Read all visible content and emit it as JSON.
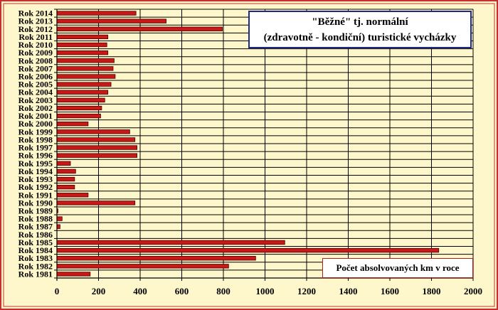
{
  "colors": {
    "background": "#fff7cc",
    "border": "#c83030",
    "bar_fill": "#c81818",
    "bar_edge": "#4a0000",
    "gridline": "#000000",
    "title_border": "#1c2a8a"
  },
  "chart_data": {
    "type": "bar",
    "orientation": "horizontal",
    "title_lines": [
      "\"Běžné\" tj. normální",
      "(zdravotně - kondiční) turistické vycházky"
    ],
    "legend_label": "Počet absolvovaných km v roce",
    "xlim": [
      0,
      2000
    ],
    "x_ticks": [
      0,
      200,
      400,
      600,
      800,
      1000,
      1200,
      1400,
      1600,
      1800,
      2000
    ],
    "grid": true,
    "categories": [
      "Rok 1981",
      "Rok 1982",
      "Rok 1983",
      "Rok 1984",
      "Rok 1985",
      "Rok 1986",
      "Rok 1987",
      "Rok 1988",
      "Rok 1989",
      "Rok 1990",
      "Rok 1991",
      "Rok 1992",
      "Rok 1993",
      "Rok 1994",
      "Rok 1995",
      "Rok 1996",
      "Rok 1997",
      "Rok 1998",
      "Rok 1999",
      "Rok 2000",
      "Rok 2001",
      "Rok 2002",
      "Rok 2003",
      "Rok 2004",
      "Rok 2005",
      "Rok 2006",
      "Rok 2007",
      "Rok 2008",
      "Rok 2009",
      "Rok 2010",
      "Rok 2011",
      "Rok 2012",
      "Rok 2013",
      "Rok 2014"
    ],
    "values": [
      160,
      825,
      955,
      1835,
      1095,
      0,
      15,
      25,
      5,
      375,
      150,
      85,
      85,
      90,
      65,
      385,
      385,
      375,
      350,
      150,
      210,
      215,
      230,
      245,
      260,
      280,
      270,
      275,
      245,
      240,
      245,
      795,
      525,
      380
    ]
  }
}
